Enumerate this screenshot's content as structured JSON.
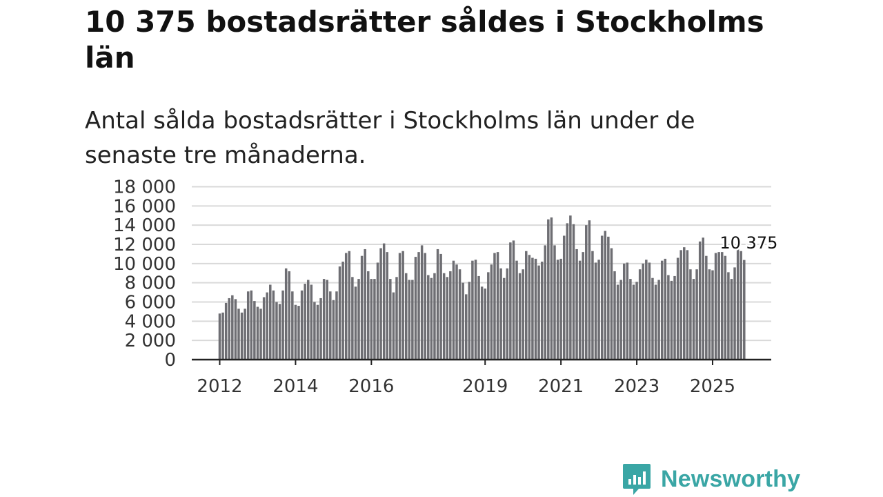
{
  "header": {
    "title": "10 375 bostadsrätter såldes i Stockholms län",
    "subtitle": "Antal sålda bostadsrätter i Stockholms län under de senaste tre månaderna."
  },
  "brand": {
    "name": "Newsworthy"
  },
  "colors": {
    "bar": "#6e6e73",
    "highlight": "#1a9c95",
    "grid": "#d9d9d9",
    "axis": "#222222",
    "brand": "#3aa6a5"
  },
  "chart_data": {
    "type": "bar",
    "title": "10 375 bostadsrätter såldes i Stockholms län",
    "subtitle": "Antal sålda bostadsrätter i Stockholms län under de senaste tre månaderna.",
    "xlabel": "",
    "ylabel": "",
    "ylim": [
      0,
      18000
    ],
    "y_ticks": [
      0,
      2000,
      4000,
      6000,
      8000,
      10000,
      12000,
      14000,
      16000,
      18000
    ],
    "y_tick_labels": [
      "0",
      "2 000",
      "4 000",
      "6 000",
      "8 000",
      "10 000",
      "12 000",
      "14 000",
      "16 000",
      "18 000"
    ],
    "grid": true,
    "start": "2012-01",
    "frequency": "monthly",
    "x_tick_labels": [
      {
        "index": 0,
        "label": "2012"
      },
      {
        "index": 24,
        "label": "2014"
      },
      {
        "index": 48,
        "label": "2016"
      },
      {
        "index": 84,
        "label": "2019"
      },
      {
        "index": 108,
        "label": "2021"
      },
      {
        "index": 132,
        "label": "2023"
      },
      {
        "index": 156,
        "label": "2025"
      }
    ],
    "highlight_index": 167,
    "annotation": {
      "index": 167,
      "label": "10 375"
    },
    "values": [
      4800,
      4900,
      5900,
      6400,
      6700,
      6300,
      5300,
      4900,
      5300,
      7100,
      7200,
      6100,
      5500,
      5300,
      6500,
      7000,
      7800,
      7200,
      6000,
      5800,
      7200,
      9500,
      9200,
      7100,
      5700,
      5600,
      7200,
      7900,
      8300,
      7800,
      6000,
      5700,
      6400,
      8400,
      8300,
      7100,
      6200,
      7100,
      9700,
      10200,
      11100,
      11300,
      8600,
      7600,
      8400,
      10800,
      11500,
      9200,
      8400,
      8400,
      10100,
      11600,
      12100,
      11200,
      8400,
      7000,
      8600,
      11100,
      11300,
      9000,
      8300,
      8300,
      10700,
      11200,
      11900,
      11100,
      8800,
      8500,
      9000,
      11500,
      11000,
      9000,
      8600,
      9200,
      10300,
      9900,
      9400,
      8000,
      6800,
      8100,
      10300,
      10400,
      8700,
      7600,
      7400,
      9100,
      9900,
      11100,
      11200,
      9500,
      8500,
      9500,
      12200,
      12400,
      10300,
      9000,
      9400,
      11300,
      10900,
      10600,
      10500,
      9800,
      10200,
      11900,
      14600,
      14800,
      11900,
      10400,
      10500,
      12900,
      14200,
      15000,
      14100,
      11500,
      10300,
      11200,
      14000,
      14500,
      11300,
      10100,
      10400,
      12900,
      13400,
      12800,
      11600,
      9200,
      7800,
      8300,
      10000,
      10100,
      8400,
      7800,
      8100,
      9400,
      10000,
      10400,
      10100,
      8500,
      7800,
      8300,
      10300,
      10500,
      8800,
      8200,
      8700,
      10600,
      11400,
      11700,
      11400,
      9400,
      8400,
      9400,
      12300,
      12700,
      10800,
      9400,
      9300,
      11100,
      11200,
      11200,
      10800,
      9100,
      8400,
      9600,
      11600,
      11300,
      10375
    ]
  }
}
